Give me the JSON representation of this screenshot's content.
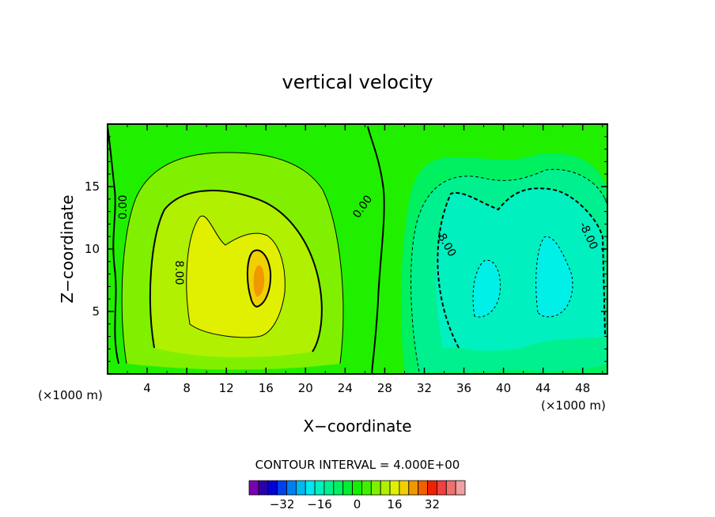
{
  "chart_data": {
    "type": "contour",
    "title": "vertical velocity",
    "xlabel": "X−coordinate",
    "ylabel": "Z−coordinate",
    "x_unit_left": "(×1000 m)",
    "x_unit_right": "(×1000 m)",
    "x_ticks": [
      "4",
      "8",
      "12",
      "16",
      "20",
      "24",
      "28",
      "32",
      "36",
      "40",
      "44",
      "48"
    ],
    "y_ticks": [
      "5",
      "10",
      "15"
    ],
    "xlim": [
      0,
      50.5
    ],
    "ylim": [
      0,
      20
    ],
    "contour_interval_text": "CONTOUR INTERVAL = 4.000E+00",
    "contour_labels": [
      "0.00",
      "0.00",
      "8.00",
      "-8.00",
      "-8.00"
    ],
    "colorbar": {
      "tick_labels": [
        "−32",
        "−16",
        "0",
        "16",
        "32"
      ],
      "tick_values": [
        -32,
        -16,
        0,
        16,
        32
      ],
      "colors": [
        "#7b00b0",
        "#2a00a8",
        "#0000d8",
        "#0040f0",
        "#0080f0",
        "#00b8f0",
        "#00e8f0",
        "#00f0c0",
        "#00f090",
        "#00f060",
        "#00f030",
        "#10f000",
        "#40f000",
        "#80f000",
        "#b0f000",
        "#e0f000",
        "#f0d000",
        "#f09800",
        "#f06000",
        "#f02000",
        "#f04040",
        "#f07070",
        "#f0a0a0"
      ]
    },
    "features": [
      {
        "kind": "updraft",
        "x_center": 13,
        "z_center": 9,
        "max_value": 20
      },
      {
        "kind": "downdraft",
        "x_center": 38.5,
        "z_center": 8,
        "min_value": -16
      },
      {
        "kind": "downdraft",
        "x_center": 44,
        "z_center": 8,
        "min_value": -16
      }
    ],
    "grid": false
  }
}
